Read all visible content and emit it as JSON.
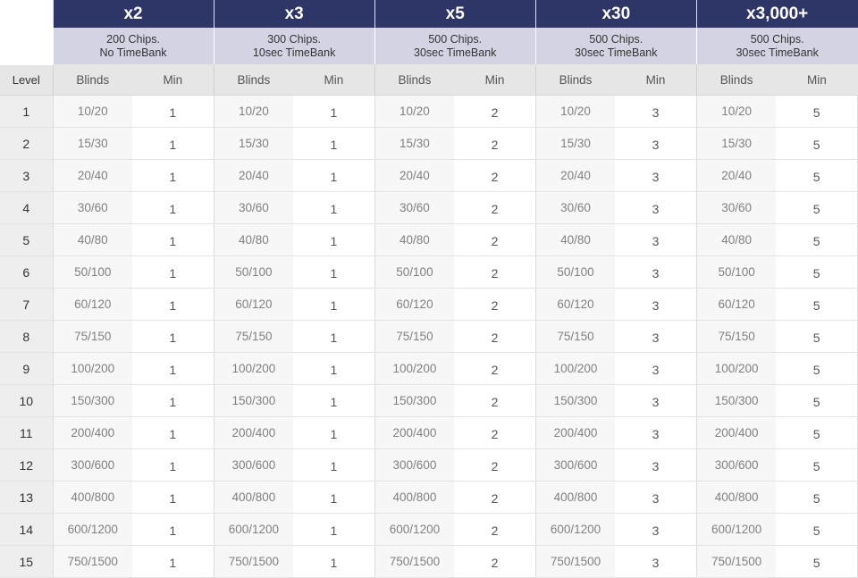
{
  "tiers": [
    {
      "multiplier": "x2",
      "chips": "200 Chips.",
      "timebank": "No TimeBank",
      "mins": [
        "1",
        "1",
        "1",
        "1",
        "1",
        "1",
        "1",
        "1",
        "1",
        "1",
        "1",
        "1",
        "1",
        "1",
        "1"
      ]
    },
    {
      "multiplier": "x3",
      "chips": "300 Chips.",
      "timebank": "10sec TimeBank",
      "mins": [
        "1",
        "1",
        "1",
        "1",
        "1",
        "1",
        "1",
        "1",
        "1",
        "1",
        "1",
        "1",
        "1",
        "1",
        "1"
      ]
    },
    {
      "multiplier": "x5",
      "chips": "500 Chips.",
      "timebank": "30sec TimeBank",
      "mins": [
        "2",
        "2",
        "2",
        "2",
        "2",
        "2",
        "2",
        "2",
        "2",
        "2",
        "2",
        "2",
        "2",
        "2",
        "2"
      ]
    },
    {
      "multiplier": "x30",
      "chips": "500 Chips.",
      "timebank": "30sec TimeBank",
      "mins": [
        "3",
        "3",
        "3",
        "3",
        "3",
        "3",
        "3",
        "3",
        "3",
        "3",
        "3",
        "3",
        "3",
        "3",
        "3"
      ]
    },
    {
      "multiplier": "x3,000+",
      "chips": "500 Chips.",
      "timebank": "30sec TimeBank",
      "mins": [
        "5",
        "5",
        "5",
        "5",
        "5",
        "5",
        "5",
        "5",
        "5",
        "5",
        "5",
        "5",
        "5",
        "5",
        "5"
      ]
    }
  ],
  "headers": {
    "level": "Level",
    "blinds": "Blinds",
    "min": "Min"
  },
  "levels": [
    "1",
    "2",
    "3",
    "4",
    "5",
    "6",
    "7",
    "8",
    "9",
    "10",
    "11",
    "12",
    "13",
    "14",
    "15"
  ],
  "blinds": [
    "10/20",
    "15/30",
    "20/40",
    "30/60",
    "40/80",
    "50/100",
    "60/120",
    "75/150",
    "100/200",
    "150/300",
    "200/400",
    "300/600",
    "400/800",
    "600/1200",
    "750/1500"
  ],
  "colors": {
    "header_bg": "#2e3668",
    "subheader_bg": "#d2d4e4",
    "column_header_bg": "#e6e6e6"
  }
}
